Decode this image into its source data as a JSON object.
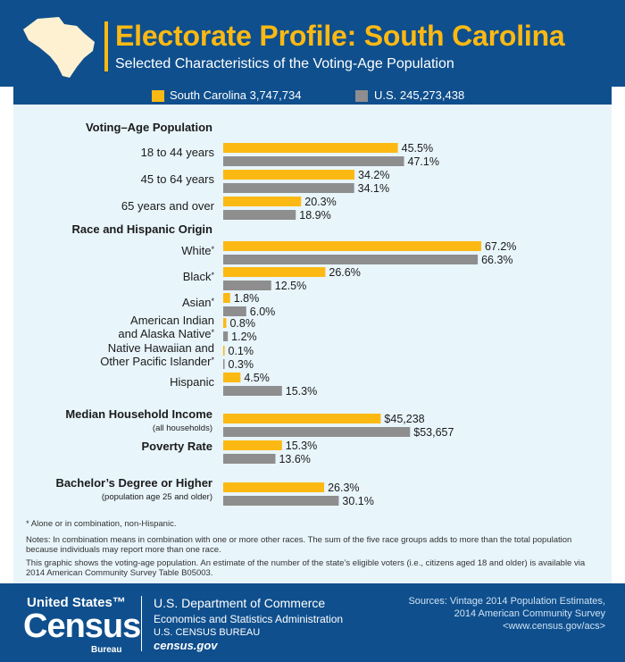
{
  "header": {
    "title": "Electorate Profile: South Carolina",
    "subtitle": "Selected Characteristics of the Voting-Age Population"
  },
  "legend": {
    "sc_label": "South Carolina 3,747,734",
    "us_label": "U.S. 245,273,438"
  },
  "colors": {
    "south_carolina": "#fdb913",
    "us": "#8e8e8e",
    "header_bg": "#0f4f8d",
    "panel_bg": "#e8f5fb"
  },
  "chart_data": {
    "type": "bar",
    "orientation": "horizontal",
    "title": "Electorate Profile: South Carolina",
    "subtitle": "Selected Characteristics of the Voting-Age Population",
    "series": [
      {
        "name": "South Carolina 3,747,734",
        "color": "#fdb913"
      },
      {
        "name": "U.S. 245,273,438",
        "color": "#8e8e8e"
      }
    ],
    "legend_position": "top",
    "groups": [
      {
        "heading": "Voting–Age Population",
        "items": [
          {
            "label": "18 to 44 years",
            "values": [
              45.5,
              47.1
            ],
            "display": [
              "45.5%",
              "47.1%"
            ]
          },
          {
            "label": "45 to 64 years",
            "values": [
              34.2,
              34.1
            ],
            "display": [
              "34.2%",
              "34.1%"
            ]
          },
          {
            "label": "65 years and over",
            "values": [
              20.3,
              18.9
            ],
            "display": [
              "20.3%",
              "18.9%"
            ]
          }
        ]
      },
      {
        "heading": "Race and Hispanic Origin",
        "items": [
          {
            "label": "White",
            "marker": "*",
            "values": [
              67.2,
              66.3
            ],
            "display": [
              "67.2%",
              "66.3%"
            ]
          },
          {
            "label": "Black",
            "marker": "*",
            "values": [
              26.6,
              12.5
            ],
            "display": [
              "26.6%",
              "12.5%"
            ]
          },
          {
            "label": "Asian",
            "marker": "*",
            "values": [
              1.8,
              6.0
            ],
            "display": [
              "1.8%",
              "6.0%"
            ]
          },
          {
            "label": "American Indian",
            "label2": "and Alaska Native",
            "marker": "*",
            "values": [
              0.8,
              1.2
            ],
            "display": [
              "0.8%",
              "1.2%"
            ]
          },
          {
            "label": "Native Hawaiian and",
            "label2": "Other Pacific Islander",
            "marker": "*",
            "values": [
              0.1,
              0.3
            ],
            "display": [
              "0.1%",
              "0.3%"
            ]
          },
          {
            "label": "Hispanic",
            "values": [
              4.5,
              15.3
            ],
            "display": [
              "4.5%",
              "15.3%"
            ]
          }
        ]
      },
      {
        "heading": "Median Household Income",
        "subheading": "(all households)",
        "items": [
          {
            "values": [
              45238,
              53657
            ],
            "display": [
              "$45,238",
              "$53,657"
            ]
          }
        ]
      },
      {
        "heading": "Poverty Rate",
        "items": [
          {
            "values": [
              15.3,
              13.6
            ],
            "display": [
              "15.3%",
              "13.6%"
            ]
          }
        ]
      },
      {
        "heading": "Bachelor’s Degree or Higher",
        "subheading": "(population age 25 and older)",
        "items": [
          {
            "values": [
              26.3,
              30.1
            ],
            "display": [
              "26.3%",
              "30.1%"
            ]
          }
        ]
      }
    ],
    "grid": false
  },
  "notes": {
    "asterisk": "* Alone or in combination, non-Hispanic.",
    "combination_1": "Notes: In combination means in combination with one or more other races. The sum of the five race groups adds to more than the total population",
    "combination_2": "because individuals may report more than one race.",
    "voting_1": "This graphic shows the voting-age population. An estimate of the number of the state’s eligible voters (i.e., citizens aged 18 and older) is available via",
    "voting_2": "2014 American Community Survey Table B05003."
  },
  "footer": {
    "logo_us": "United States™",
    "logo_census": "Census",
    "logo_bureau": "Bureau",
    "dept": "U.S. Department of Commerce",
    "admin": "Economics and Statistics Administration",
    "bureau": "U.S. CENSUS BUREAU",
    "site": "census.gov",
    "sources_1": "Sources: Vintage 2014 Population Estimates,",
    "sources_2": "2014 American Community Survey",
    "sources_3": "<www.census.gov/acs>"
  }
}
